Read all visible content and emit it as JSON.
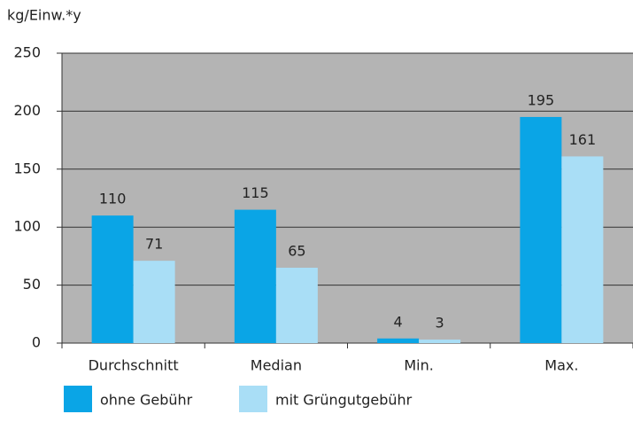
{
  "chart_data": {
    "type": "bar",
    "y_label": "kg/Einw.*y",
    "categories": [
      "Durchschnitt",
      "Median",
      "Min.",
      "Max."
    ],
    "series": [
      {
        "name": "ohne Gebühr",
        "color": "#0aa5e6",
        "values": [
          110,
          115,
          4,
          195
        ]
      },
      {
        "name": "mit Grüngutgebühr",
        "color": "#a9def6",
        "values": [
          71,
          65,
          3,
          161
        ]
      }
    ],
    "ylim": [
      0,
      250
    ],
    "yticks": [
      0,
      50,
      100,
      150,
      200,
      250
    ],
    "grid": true,
    "legend": "bottom"
  }
}
